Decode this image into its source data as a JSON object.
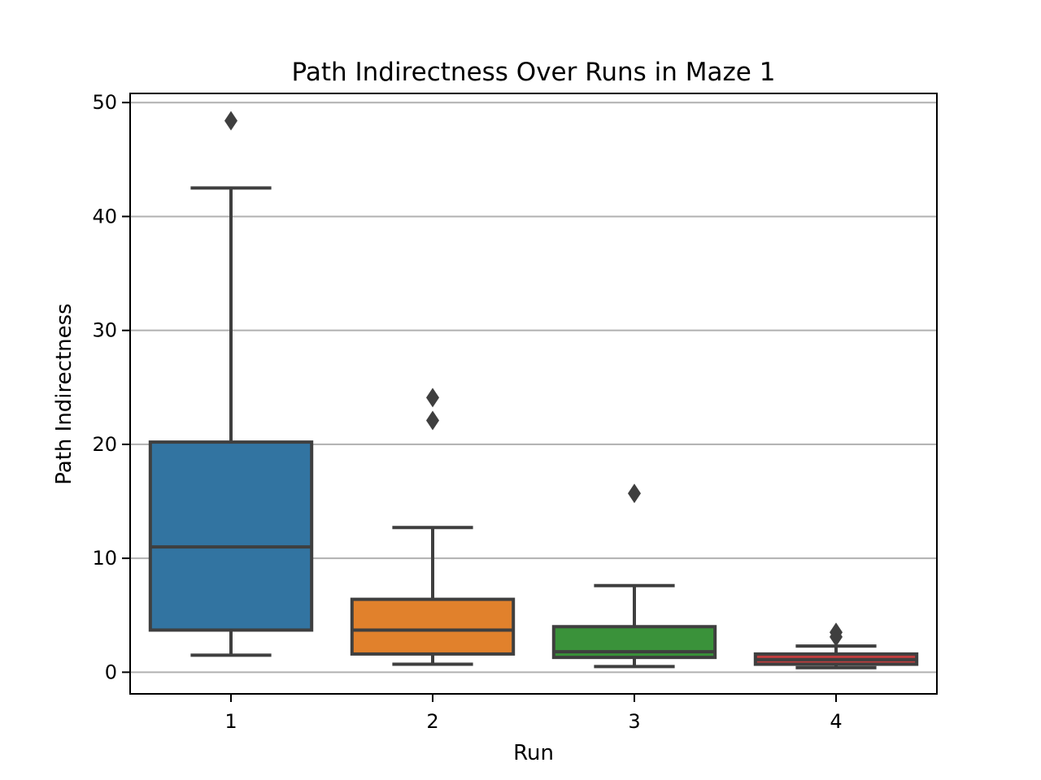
{
  "chart_data": {
    "type": "box",
    "title": "Path Indirectness Over Runs in Maze 1",
    "xlabel": "Run",
    "ylabel": "Path Indirectness",
    "categories": [
      "1",
      "2",
      "3",
      "4"
    ],
    "ylim": [
      -1.9,
      50.8
    ],
    "yticks": [
      0,
      10,
      20,
      30,
      40,
      50
    ],
    "grid": "y",
    "legend": "none",
    "boxes": [
      {
        "category": "1",
        "color": "#3274a1",
        "whisker_low": 1.5,
        "q1": 3.7,
        "median": 11.0,
        "q3": 20.2,
        "whisker_high": 42.5,
        "outliers": [
          48.4
        ]
      },
      {
        "category": "2",
        "color": "#e1812c",
        "whisker_low": 0.7,
        "q1": 1.6,
        "median": 3.7,
        "q3": 6.4,
        "whisker_high": 12.7,
        "outliers": [
          22.1,
          24.1
        ]
      },
      {
        "category": "3",
        "color": "#3a923a",
        "whisker_low": 0.5,
        "q1": 1.3,
        "median": 1.8,
        "q3": 4.0,
        "whisker_high": 7.6,
        "outliers": [
          15.7
        ]
      },
      {
        "category": "4",
        "color": "#c03d3e",
        "whisker_low": 0.4,
        "q1": 0.7,
        "median": 1.1,
        "q3": 1.6,
        "whisker_high": 2.3,
        "outliers": [
          3.1,
          3.5
        ]
      }
    ]
  }
}
